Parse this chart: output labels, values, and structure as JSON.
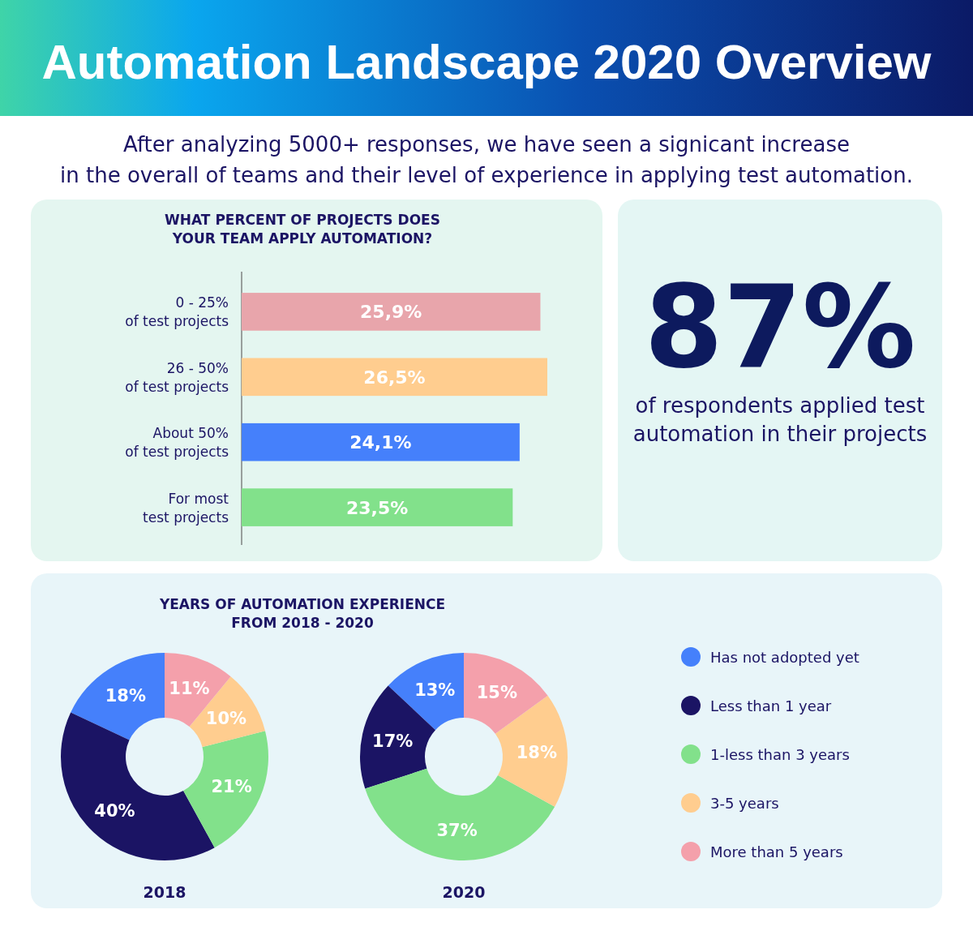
{
  "chart_data": [
    {
      "type": "other",
      "title": "Automation Landscape 2020 Overview",
      "subtitle": "After analyzing 5000+ responses, we have seen a signicant increase\nin the overall of teams and their level of experience in applying test automation."
    },
    {
      "type": "bar",
      "orientation": "horizontal",
      "title": "WHAT PERCENT OF PROJECTS DOES\nYOUR TEAM APPLY AUTOMATION?",
      "categories": [
        "0 - 25%\nof test projects",
        "26 - 50%\nof test projects",
        "About 50%\nof test projects",
        "For most\ntest projects"
      ],
      "values": [
        25.9,
        26.5,
        24.1,
        23.5
      ],
      "value_labels": [
        "25,9%",
        "26,5%",
        "24,1%",
        "23,5%"
      ],
      "colors": [
        "#e8a5ab",
        "#ffcd8f",
        "#4580fb",
        "#82e18b"
      ]
    },
    {
      "type": "other",
      "annotations": [
        "87%",
        "of respondents applied test\nautomation in their projects"
      ]
    },
    {
      "type": "donut",
      "title": "YEARS OF AUTOMATION EXPERIENCE\nFROM 2018 - 2020",
      "xlabel": "2018",
      "categories": [
        null,
        null,
        null,
        null,
        null
      ],
      "values": [
        18,
        40,
        21,
        10,
        11
      ],
      "value_labels": [
        "18%",
        "40%",
        "21%",
        "10%",
        "11%"
      ],
      "colors": [
        "#4580fb",
        "#1b1464",
        "#82e18b",
        "#ffcd8f",
        "#f4a0ab"
      ],
      "legend": false
    },
    {
      "type": "donut",
      "xlabel": "2020",
      "categories": [
        "Has not adopted yet",
        "Less than 1 year",
        "1-less than 3 years",
        "3-5 years",
        "More than 5 years"
      ],
      "values": [
        13,
        17,
        37,
        18,
        15
      ],
      "value_labels": [
        "13%",
        "17%",
        "37%",
        "18%",
        "15%"
      ],
      "colors": [
        "#4580fb",
        "#1b1464",
        "#82e18b",
        "#ffcd8f",
        "#f4a0ab"
      ],
      "legend": "right"
    }
  ]
}
